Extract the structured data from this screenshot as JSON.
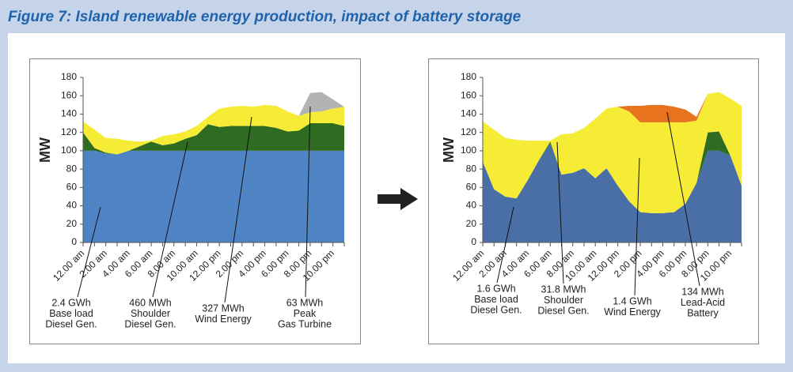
{
  "figure_title": "Figure 7: Island renewable energy production, impact of battery storage",
  "chart_data": [
    {
      "type": "stacked-area",
      "y_label": "MW",
      "ylim": [
        0,
        180
      ],
      "yticks": [
        0,
        20,
        40,
        60,
        80,
        100,
        120,
        140,
        160,
        180
      ],
      "categories": [
        "12.00 am",
        null,
        "2.00 am",
        null,
        "4.00 am",
        null,
        "6.00 am",
        null,
        "8.00 am",
        null,
        "10.00 am",
        null,
        "12.00 pm",
        null,
        "2.00 pm",
        null,
        "4.00 pm",
        null,
        "6.00 pm",
        null,
        "8.00 pm",
        null,
        "10.00 pm",
        null
      ],
      "series": [
        {
          "name": "Base load Diesel Gen.",
          "color": "#4f84c4",
          "values": [
            100,
            100,
            97,
            96,
            100,
            100,
            100,
            100,
            100,
            100,
            100,
            100,
            100,
            100,
            100,
            100,
            100,
            100,
            100,
            100,
            100,
            100,
            100,
            100
          ]
        },
        {
          "name": "Shoulder Diesel Gen.",
          "color": "#2f6b21",
          "values": [
            20,
            3,
            1,
            0,
            0,
            5,
            10,
            6,
            8,
            13,
            17,
            29,
            26,
            27,
            27,
            27,
            27,
            25,
            21,
            22,
            30,
            30,
            30,
            27
          ]
        },
        {
          "name": "Wind Energy",
          "color": "#f6ec35",
          "values": [
            12,
            20,
            16,
            17,
            11,
            5,
            1,
            10,
            10,
            8,
            10,
            8,
            20,
            21,
            22,
            21,
            23,
            24,
            22,
            16,
            12,
            13,
            16,
            21
          ]
        },
        {
          "name": "Peak Gas Turbine",
          "color": "#b3b3b3",
          "values": [
            0,
            0,
            0,
            0,
            0,
            0,
            0,
            0,
            0,
            0,
            0,
            0,
            0,
            0,
            0,
            0,
            0,
            0,
            0,
            0,
            21,
            21,
            10,
            0
          ]
        }
      ],
      "annotations": [
        [
          "2.4 GWh",
          "Base load",
          "Diesel Gen."
        ],
        [
          "460 MWh",
          "Shoulder",
          "Diesel Gen."
        ],
        [
          "327 MWh",
          "Wind Energy"
        ],
        [
          "63 MWh",
          "Peak",
          "Gas Turbine"
        ]
      ]
    },
    {
      "type": "stacked-area",
      "y_label": "MW",
      "ylim": [
        0,
        180
      ],
      "yticks": [
        0,
        20,
        40,
        60,
        80,
        100,
        120,
        140,
        160,
        180
      ],
      "categories": [
        "12.00 am",
        null,
        "2.00 am",
        null,
        "4.00 am",
        null,
        "6.00 am",
        null,
        "8.00 am",
        null,
        "10.00 am",
        null,
        "12.00 pm",
        null,
        "2.00 pm",
        null,
        "4.00 pm",
        null,
        "6.00 pm",
        null,
        "8.00 pm",
        null,
        "10.00 pm",
        null
      ],
      "series": [
        {
          "name": "Base load Diesel Gen.",
          "color": "#4a6fa6",
          "values": [
            88,
            58,
            50,
            48,
            68,
            90,
            108,
            74,
            76,
            81,
            70,
            81,
            62,
            45,
            33,
            32,
            32,
            33,
            42,
            65,
            100,
            100,
            95,
            62
          ]
        },
        {
          "name": "Shoulder Diesel Gen.",
          "color": "#2f6b21",
          "values": [
            0,
            0,
            0,
            0,
            0,
            0,
            2,
            0,
            0,
            0,
            0,
            0,
            0,
            0,
            0,
            0,
            0,
            0,
            0,
            0,
            20,
            21,
            0,
            0
          ]
        },
        {
          "name": "Wind Energy",
          "color": "#f6ec35",
          "values": [
            44,
            65,
            64,
            64,
            43,
            21,
            1,
            44,
            43,
            44,
            65,
            65,
            86,
            98,
            98,
            99,
            99,
            98,
            89,
            68,
            42,
            43,
            62,
            87
          ]
        },
        {
          "name": "Lead-Acid Battery",
          "color": "#e8731f",
          "values": [
            0,
            0,
            0,
            0,
            0,
            0,
            0,
            0,
            0,
            0,
            0,
            0,
            0,
            6,
            18,
            19,
            19,
            17,
            14,
            4,
            0,
            0,
            0,
            0
          ]
        }
      ],
      "annotations": [
        [
          "1.6 GWh",
          "Base load",
          "Diesel Gen."
        ],
        [
          "31.8 MWh",
          "Shoulder",
          "Diesel Gen."
        ],
        [
          "1.4 GWh",
          "Wind Energy"
        ],
        [
          "134 MWh",
          "Lead-Acid",
          "Battery"
        ]
      ]
    }
  ]
}
